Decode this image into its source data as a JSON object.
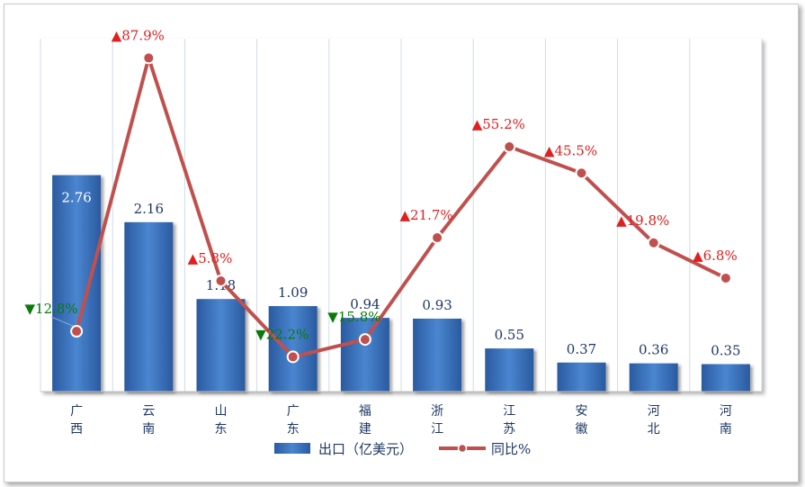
{
  "chart_data": {
    "type": "bar",
    "title": "",
    "categories": [
      "广西",
      "云南",
      "山东",
      "广东",
      "福建",
      "浙江",
      "江苏",
      "安徽",
      "河北",
      "河南"
    ],
    "series": [
      {
        "name": "出口（亿美元）",
        "type": "bar",
        "axis": "left",
        "values": [
          2.76,
          2.16,
          1.18,
          1.09,
          0.94,
          0.93,
          0.55,
          0.37,
          0.36,
          0.35
        ],
        "labels": [
          "2.76",
          "2.16",
          "1.18",
          "1.09",
          "0.94",
          "0.93",
          "0.55",
          "0.37",
          "0.36",
          "0.35"
        ]
      },
      {
        "name": "同比%",
        "type": "line",
        "axis": "right",
        "values": [
          -12.8,
          87.9,
          5.8,
          -22.2,
          -15.8,
          21.7,
          55.2,
          45.5,
          19.8,
          6.8
        ],
        "labels": [
          "▼12.8%",
          "▲87.9%",
          "▲5.8%",
          "▼22.2%",
          "▼15.8%",
          "▲21.7%",
          "▲55.2%",
          "▲45.5%",
          "▲19.8%",
          "▲6.8%"
        ]
      }
    ],
    "y_left_range": [
      0,
      4.5
    ],
    "y_right_range": [
      -35,
      95
    ],
    "legend_position": "bottom",
    "grid": "vertical",
    "colors": {
      "bar": "#2f64ad",
      "line": "#c0504d",
      "up": "#e02020",
      "down": "#0a7a0a",
      "grid": "#cfdce8"
    }
  }
}
